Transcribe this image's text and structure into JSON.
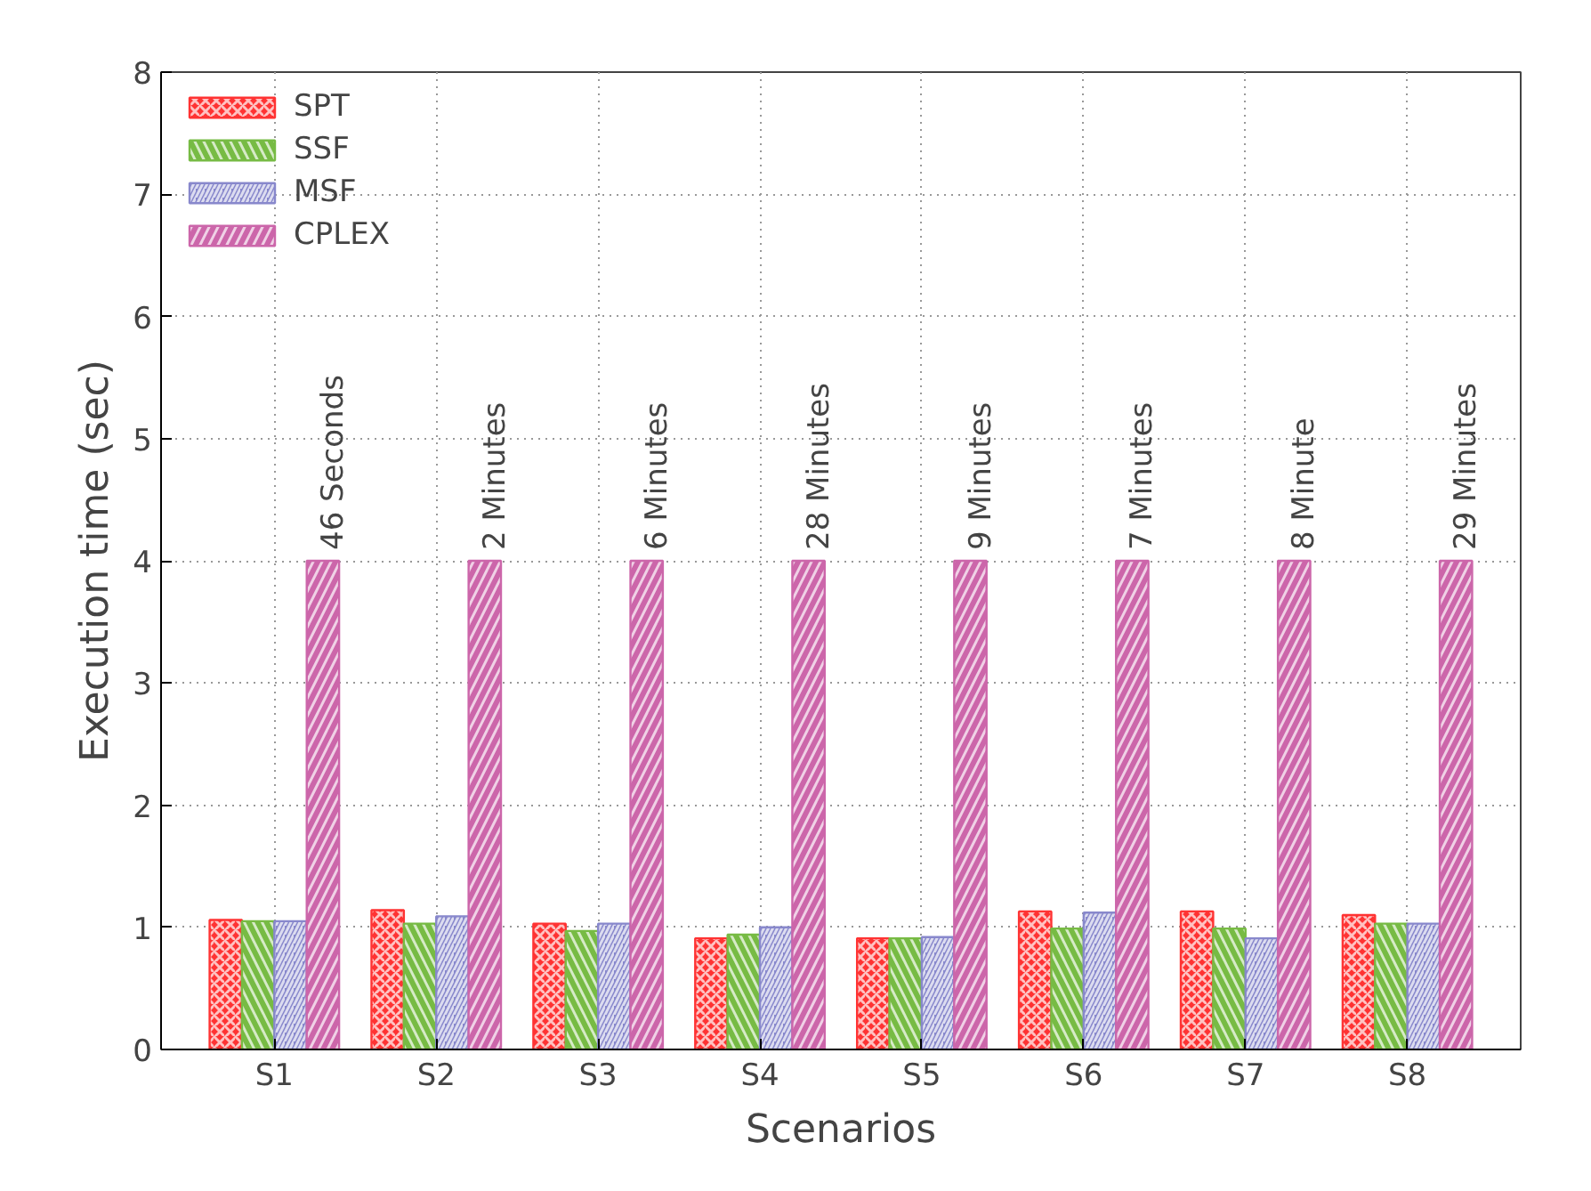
{
  "chart_data": {
    "type": "bar",
    "xlabel": "Scenarios",
    "ylabel": "Execution time (sec)",
    "categories": [
      "S1",
      "S2",
      "S3",
      "S4",
      "S5",
      "S6",
      "S7",
      "S8"
    ],
    "series": [
      {
        "name": "SPT",
        "color": "#ff3333",
        "values": [
          1.06,
          1.14,
          1.03,
          0.91,
          0.91,
          1.13,
          1.13,
          1.1
        ]
      },
      {
        "name": "SSF",
        "color": "#77bb44",
        "values": [
          1.05,
          1.03,
          0.97,
          0.94,
          0.91,
          0.99,
          0.99,
          1.03
        ]
      },
      {
        "name": "MSF",
        "color": "#8888cc",
        "values": [
          1.05,
          1.09,
          1.03,
          1.0,
          0.92,
          1.12,
          0.91,
          1.03
        ]
      },
      {
        "name": "CPLEX",
        "color": "#cc66aa",
        "values": [
          4,
          4,
          4,
          4,
          4,
          4,
          4,
          4
        ]
      }
    ],
    "annotations": [
      "46 Seconds",
      "2 Minutes",
      "6 Minutes",
      "28 Minutes",
      "9 Minutes",
      "7 Minutes",
      "8 Minute",
      "29 Minutes"
    ],
    "ylim": [
      0,
      8
    ],
    "yticks": [
      0,
      1,
      2,
      3,
      4,
      5,
      6,
      7,
      8
    ],
    "grid": true,
    "legend": "top left"
  }
}
